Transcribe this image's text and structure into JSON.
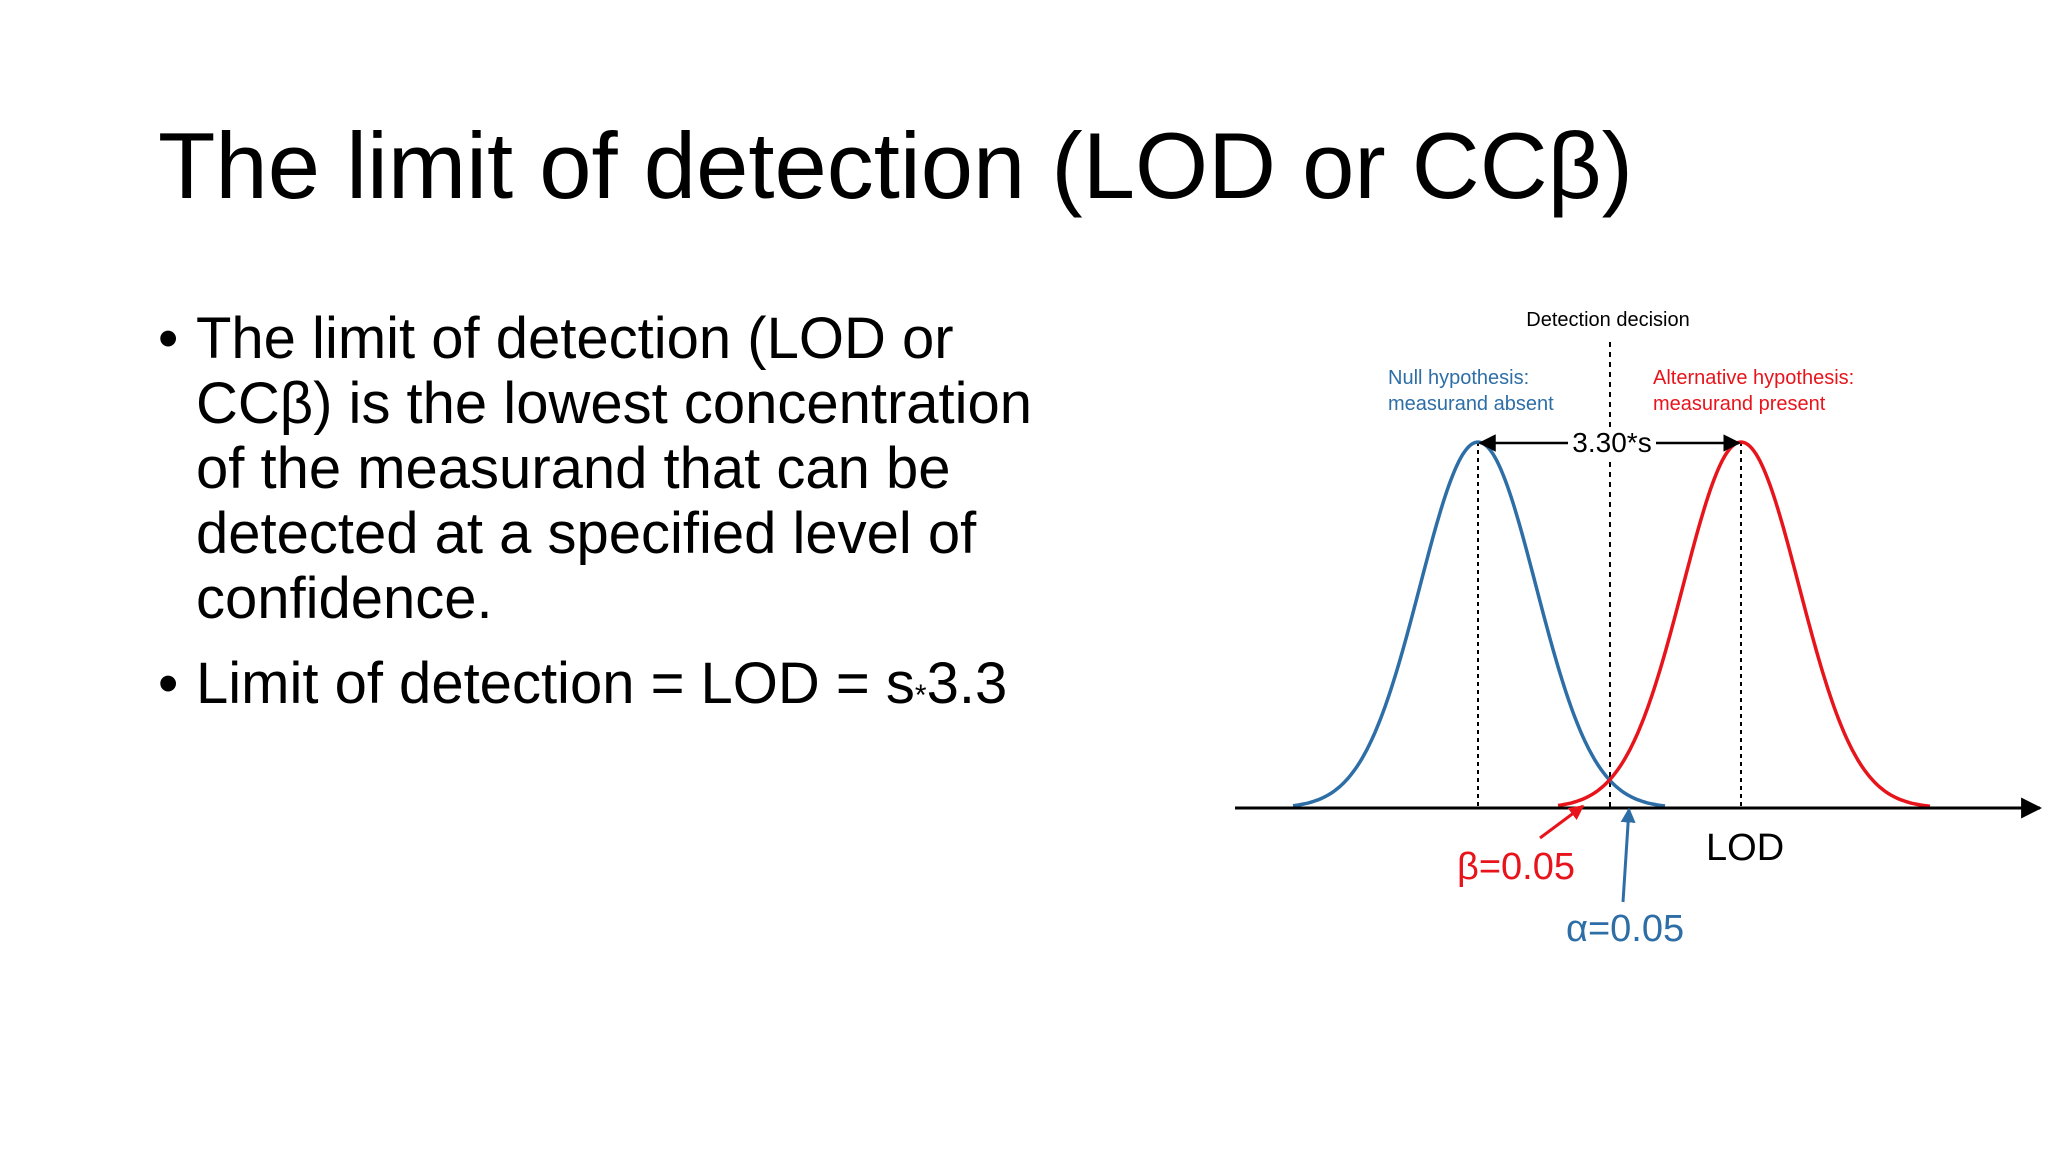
{
  "title": "The limit of detection (LOD or CCβ)",
  "bullets": [
    "The limit of detection (LOD or CCβ) is the lowest concentration of the measurand that can be detected at a specified level of confidence.",
    {
      "pre": "Limit of detection = LOD = s",
      "star": "*",
      "post": "3.3"
    }
  ],
  "diagram": {
    "decision_label": "Detection decision",
    "null_line1": "Null hypothesis:",
    "null_line2": "measurand absent",
    "alt_line1": "Alternative hypothesis:",
    "alt_line2": "measurand present",
    "distance_label": "3.30*s",
    "lod_label": "LOD",
    "beta_label": "β=0.05",
    "alpha_label": "α=0.05",
    "null_color": "#2e6ea6",
    "alt_color": "#e8141b"
  }
}
